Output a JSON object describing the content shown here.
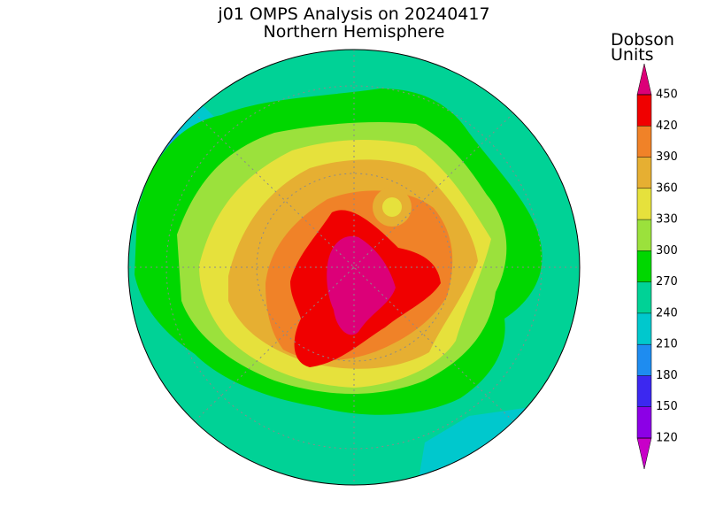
{
  "header": {
    "title": "j01 OMPS Analysis on 20240417",
    "subtitle": "Northern Hemisphere"
  },
  "colorbar": {
    "label": [
      "Dobson",
      "Units"
    ],
    "ticks": [
      120,
      150,
      180,
      210,
      240,
      270,
      300,
      330,
      360,
      390,
      420,
      450
    ],
    "colors": [
      "#c800c8",
      "#8c00e6",
      "#3c28f0",
      "#1e8cf0",
      "#00c8cd",
      "#00d296",
      "#00d700",
      "#9be13c",
      "#e6e13c",
      "#e6af32",
      "#f08228",
      "#f00000",
      "#dc0078"
    ]
  }
}
